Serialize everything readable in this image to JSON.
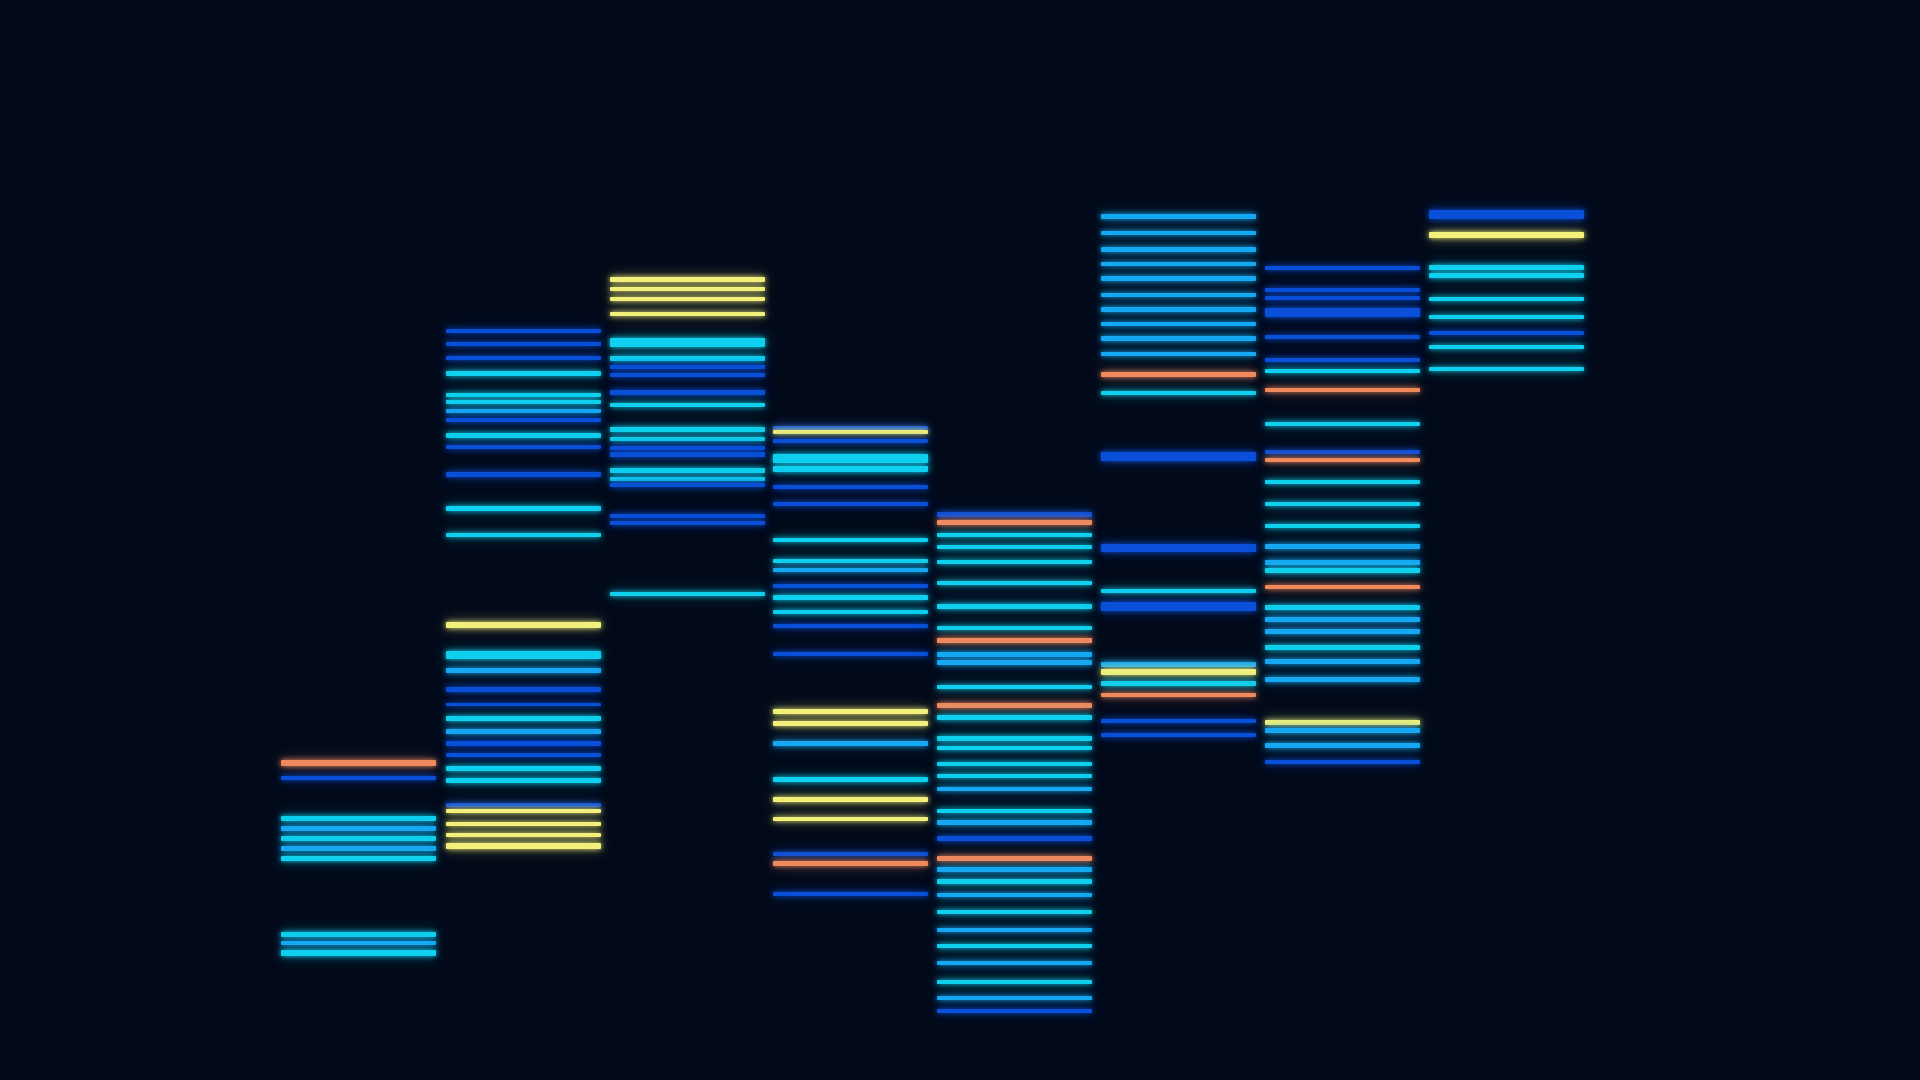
{
  "background_color": "#020a1a",
  "palette": {
    "blue": "#0a4fd8",
    "cyan": "#0fd0ee",
    "sky": "#16a8f2",
    "yellow": "#f2f07a",
    "orange": "#f08a5d"
  },
  "lanes": [
    {
      "name": "lane-1",
      "bands": [
        "orange",
        "blue",
        "cyan",
        "sky",
        "cyan",
        "sky",
        "cyan",
        "cyan",
        "sky",
        "cyan"
      ]
    },
    {
      "name": "lane-2",
      "bands": [
        "blue",
        "blue",
        "blue",
        "cyan",
        "cyan",
        "cyan",
        "sky",
        "blue",
        "cyan",
        "blue",
        "blue",
        "cyan",
        "cyan",
        "yellow",
        "cyan",
        "sky",
        "blue",
        "blue",
        "cyan",
        "sky",
        "blue",
        "blue",
        "cyan",
        "cyan",
        "blue",
        "yellow",
        "yellow",
        "yellow",
        "yellow"
      ]
    },
    {
      "name": "lane-3",
      "bands": [
        "yellow",
        "yellow",
        "yellow",
        "yellow",
        "cyan",
        "cyan",
        "blue",
        "blue",
        "blue",
        "cyan",
        "cyan",
        "cyan",
        "blue",
        "blue",
        "cyan",
        "cyan",
        "blue",
        "blue",
        "blue",
        "cyan"
      ]
    },
    {
      "name": "lane-4",
      "bands": [
        "blue",
        "yellow",
        "blue",
        "cyan",
        "cyan",
        "blue",
        "blue",
        "cyan",
        "cyan",
        "sky",
        "blue",
        "cyan",
        "cyan",
        "blue",
        "blue",
        "yellow",
        "yellow",
        "sky",
        "cyan",
        "yellow",
        "yellow",
        "blue",
        "orange",
        "blue"
      ]
    },
    {
      "name": "lane-5",
      "bands": [
        "blue",
        "orange",
        "cyan",
        "cyan",
        "cyan",
        "cyan",
        "cyan",
        "cyan",
        "orange",
        "sky",
        "sky",
        "cyan",
        "orange",
        "cyan",
        "cyan",
        "cyan",
        "cyan",
        "cyan",
        "sky",
        "cyan",
        "sky",
        "blue",
        "orange",
        "sky",
        "cyan",
        "sky",
        "cyan",
        "sky",
        "cyan",
        "sky",
        "cyan",
        "sky",
        "blue"
      ]
    },
    {
      "name": "lane-6",
      "bands": [
        "sky",
        "sky",
        "sky",
        "sky",
        "sky",
        "sky",
        "sky",
        "sky",
        "sky",
        "sky",
        "orange",
        "cyan",
        "blue",
        "blue",
        "cyan",
        "blue",
        "sky",
        "yellow",
        "cyan",
        "orange",
        "blue",
        "blue"
      ]
    },
    {
      "name": "lane-7",
      "bands": [
        "blue",
        "blue",
        "blue",
        "blue",
        "blue",
        "blue",
        "cyan",
        "orange",
        "cyan",
        "blue",
        "orange",
        "cyan",
        "cyan",
        "cyan",
        "sky",
        "sky",
        "cyan",
        "orange",
        "cyan",
        "sky",
        "sky",
        "cyan",
        "sky",
        "sky",
        "yellow",
        "sky",
        "sky",
        "blue"
      ]
    },
    {
      "name": "lane-8",
      "bands": [
        "blue",
        "yellow",
        "cyan",
        "cyan",
        "cyan",
        "cyan",
        "blue",
        "cyan",
        "cyan"
      ]
    }
  ]
}
